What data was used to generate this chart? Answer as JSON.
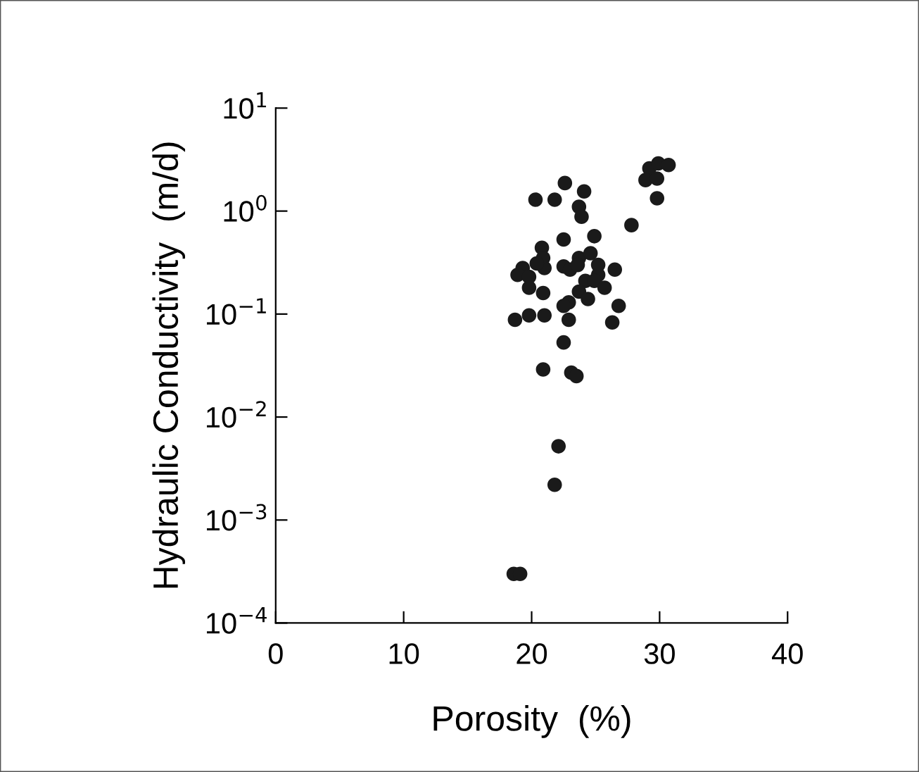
{
  "chart_data": {
    "type": "scatter",
    "xlabel": "Porosity  (%)",
    "ylabel": "Hydraulic Conductivity  (m/d)",
    "log": "y",
    "xlim": [
      0,
      40
    ],
    "xticks": [
      0,
      10,
      20,
      30,
      40
    ],
    "ylim": [
      0.0001,
      10
    ],
    "yticks": [
      {
        "value": 0.0001,
        "label": "10$^{−4}$"
      },
      {
        "value": 0.001,
        "label": "10$^{−3}$"
      },
      {
        "value": 0.01,
        "label": "10$^{−2}$"
      },
      {
        "value": 0.1,
        "label": "10$^{−1}$"
      },
      {
        "value": 1,
        "label": "10$^{0}$"
      },
      {
        "value": 10,
        "label": "10$^{1}$"
      }
    ],
    "grid": false,
    "legend": false,
    "marker": "circle",
    "series": [
      {
        "color": "#1a1a1a",
        "x": [
          22.6,
          20.3,
          21.8,
          24.1,
          23.7,
          23.9,
          29.2,
          28.9,
          29.8,
          29.8,
          29.9,
          30.7,
          27.8,
          22.5,
          24.9,
          20.8,
          20.9,
          19.3,
          18.9,
          19.8,
          19.8,
          21.0,
          20.4,
          22.5,
          23.0,
          23.7,
          23.6,
          24.6,
          25.2,
          25.2,
          26.5,
          24.2,
          23.7,
          24.4,
          24.9,
          25.7,
          20.9,
          22.9,
          22.5,
          26.8,
          26.3,
          18.7,
          19.8,
          21.0,
          22.9,
          22.5,
          20.9,
          23.1,
          23.5,
          22.1,
          21.8,
          18.6,
          19.1
        ],
        "values": [
          1.87,
          1.29,
          1.29,
          1.55,
          1.1,
          0.88,
          2.6,
          2.0,
          2.07,
          1.33,
          2.9,
          2.8,
          0.73,
          0.53,
          0.57,
          0.44,
          0.35,
          0.28,
          0.24,
          0.23,
          0.18,
          0.28,
          0.31,
          0.29,
          0.27,
          0.35,
          0.3,
          0.39,
          0.3,
          0.24,
          0.27,
          0.21,
          0.165,
          0.14,
          0.21,
          0.18,
          0.16,
          0.13,
          0.12,
          0.12,
          0.083,
          0.088,
          0.097,
          0.097,
          0.088,
          0.053,
          0.029,
          0.027,
          0.025,
          0.0052,
          0.0022,
          0.0003,
          0.0003
        ]
      }
    ]
  }
}
